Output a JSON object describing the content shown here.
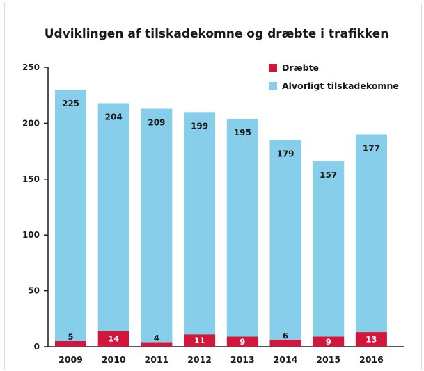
{
  "chart_data": {
    "type": "bar",
    "stacked": true,
    "title": "Udviklingen af tilskadekomne og dræbte i trafikken",
    "categories": [
      "2009",
      "2010",
      "2011",
      "2012",
      "2013",
      "2014",
      "2015",
      "2016"
    ],
    "series": [
      {
        "name": "Dræbte",
        "values": [
          5,
          14,
          4,
          11,
          9,
          6,
          9,
          13
        ],
        "color": "#d3163c"
      },
      {
        "name": "Alvorligt tilskadekomne",
        "values": [
          225,
          204,
          209,
          199,
          195,
          179,
          157,
          177
        ],
        "color": "#87ceeb"
      }
    ],
    "yticks": [
      "0",
      "50",
      "100",
      "150",
      "200",
      "250"
    ],
    "ylim": [
      0,
      250
    ],
    "grid": false,
    "legend": "top-right"
  }
}
